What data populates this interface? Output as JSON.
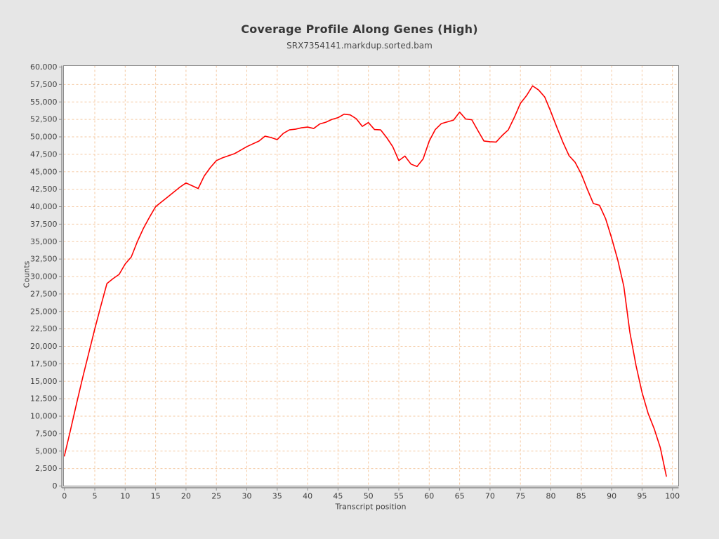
{
  "page": {
    "background": "#e6e6e6"
  },
  "chart_data": {
    "type": "line",
    "title": "Coverage Profile Along Genes (High)",
    "subtitle": "SRX7354141.markdup.sorted.bam",
    "xlabel": "Transcript position",
    "ylabel": "Counts",
    "xlim": [
      0,
      100
    ],
    "ylim": [
      0,
      60000
    ],
    "x_ticks": [
      0,
      5,
      10,
      15,
      20,
      25,
      30,
      35,
      40,
      45,
      50,
      55,
      60,
      65,
      70,
      75,
      80,
      85,
      90,
      95,
      100
    ],
    "y_ticks": [
      0,
      2500,
      5000,
      7500,
      10000,
      12500,
      15000,
      17500,
      20000,
      22500,
      25000,
      27500,
      30000,
      32500,
      35000,
      37500,
      40000,
      42500,
      45000,
      47500,
      50000,
      52500,
      55000,
      57500,
      60000
    ],
    "grid": true,
    "legend": "none",
    "colors": {
      "line": "#ff0000",
      "grid": "#f5c9a2",
      "plot_bg": "#ffffff",
      "axis": "#8a8a8a",
      "tick_text": "#3f3f3f"
    },
    "series": [
      {
        "name": "SRX7354141.markdup.sorted.bam",
        "x": [
          0,
          1,
          2,
          3,
          4,
          5,
          6,
          7,
          8,
          9,
          10,
          11,
          12,
          13,
          14,
          15,
          16,
          17,
          18,
          19,
          20,
          21,
          22,
          23,
          24,
          25,
          26,
          27,
          28,
          29,
          30,
          31,
          32,
          33,
          34,
          35,
          36,
          37,
          38,
          39,
          40,
          41,
          42,
          43,
          44,
          45,
          46,
          47,
          48,
          49,
          50,
          51,
          52,
          53,
          54,
          55,
          56,
          57,
          58,
          59,
          60,
          61,
          62,
          63,
          64,
          65,
          66,
          67,
          68,
          69,
          70,
          71,
          72,
          73,
          74,
          75,
          76,
          77,
          78,
          79,
          80,
          81,
          82,
          83,
          84,
          85,
          86,
          87,
          88,
          89,
          90,
          91,
          92,
          93,
          94,
          95,
          96,
          97,
          98,
          99
        ],
        "values": [
          4300,
          8000,
          11800,
          15500,
          19000,
          22500,
          25800,
          29000,
          29700,
          30300,
          31800,
          32800,
          35000,
          36900,
          38500,
          40000,
          40700,
          41400,
          42100,
          42800,
          43400,
          43000,
          42600,
          44400,
          45600,
          46600,
          47000,
          47300,
          47600,
          48100,
          48600,
          49000,
          49400,
          50100,
          49900,
          49600,
          50500,
          51000,
          51100,
          51300,
          51400,
          51200,
          51850,
          52100,
          52500,
          52750,
          53250,
          53150,
          52600,
          51500,
          52050,
          51050,
          51000,
          49900,
          48600,
          46600,
          47250,
          46100,
          45750,
          46850,
          49400,
          51050,
          51900,
          52150,
          52400,
          53550,
          52550,
          52450,
          50900,
          49400,
          49300,
          49250,
          50200,
          51000,
          52800,
          54800,
          55900,
          57300,
          56700,
          55700,
          53600,
          51350,
          49200,
          47300,
          46350,
          44700,
          42500,
          40450,
          40200,
          38300,
          35500,
          32400,
          28600,
          22000,
          17300,
          13400,
          10400,
          8200,
          5500,
          1400
        ]
      }
    ]
  }
}
